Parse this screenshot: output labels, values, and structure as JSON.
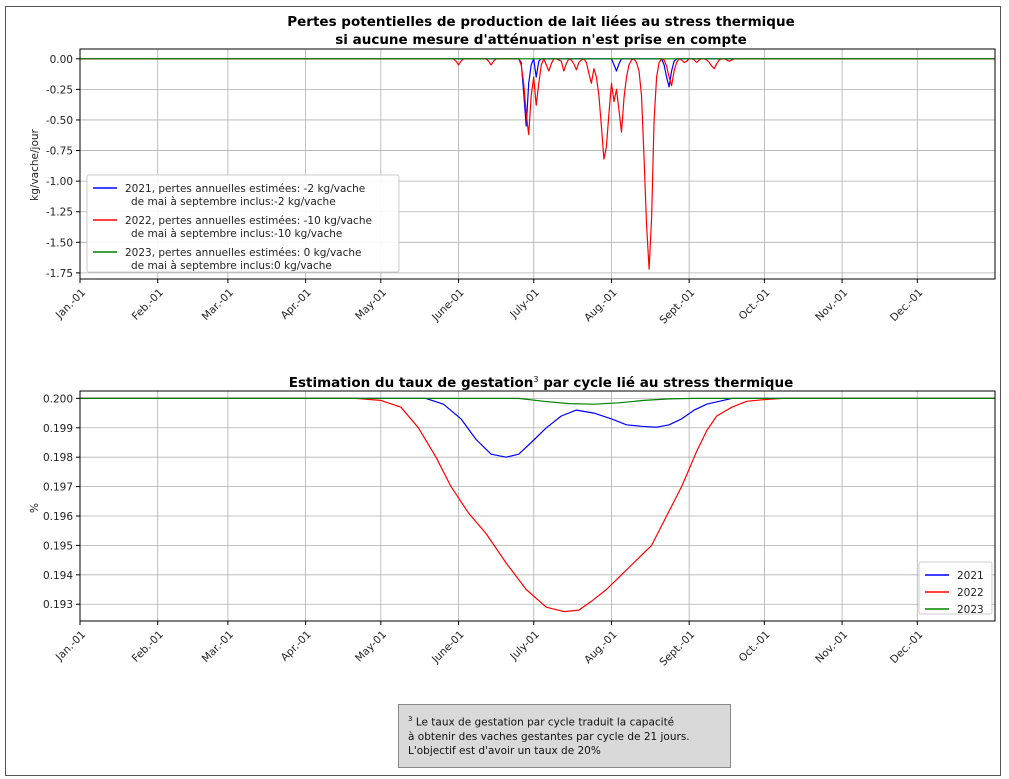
{
  "footnote": {
    "marker": "3",
    "lines": [
      "Le taux de gestation par cycle traduit la capacité",
      "à obtenir des vaches gestantes par cycle de 21 jours.",
      "L'objectif est d'avoir un taux de 20%"
    ]
  },
  "chart_data": [
    {
      "type": "line",
      "title": "Pertes potentielles de production de lait liées au stress thermique",
      "subtitle": "si aucune mesure d'atténuation n'est prise en compte",
      "xlabel": "",
      "ylabel": "kg/vache/jour",
      "xlim": [
        0,
        365
      ],
      "ylim": [
        -1.8,
        0.08
      ],
      "grid": true,
      "legend_position": "lower-left",
      "x_tick_positions": [
        0,
        31,
        59,
        90,
        120,
        151,
        181,
        212,
        243,
        273,
        304,
        334
      ],
      "x_tick_labels": [
        "Jan.-01",
        "Feb.-01",
        "Mar.-01",
        "Apr.-01",
        "May-01",
        "June-01",
        "July-01",
        "Aug.-01",
        "Sept.-01",
        "Oct.-01",
        "Nov.-01",
        "Dec.-01"
      ],
      "y_ticks": [
        0.0,
        -0.25,
        -0.5,
        -0.75,
        -1.0,
        -1.25,
        -1.5,
        -1.75
      ],
      "y_tick_labels": [
        "0.00",
        "-0.25",
        "-0.50",
        "-0.75",
        "-1.00",
        "-1.25",
        "-1.50",
        "-1.75"
      ],
      "series": [
        {
          "name": "2021, pertes annuelles estimées: -2 kg/vache",
          "name_line2": "de mai à septembre inclus:-2 kg/vache",
          "color": "#0000ff",
          "x": [
            0,
            175,
            176,
            177,
            178,
            179,
            180,
            181,
            182,
            183,
            184,
            185,
            212,
            213,
            214,
            215,
            216,
            225,
            232,
            233,
            234,
            235,
            236,
            237,
            238,
            245,
            365
          ],
          "y": [
            0,
            0,
            -0.03,
            -0.28,
            -0.55,
            -0.2,
            -0.05,
            0,
            -0.15,
            -0.02,
            0,
            0,
            0,
            -0.05,
            -0.1,
            -0.04,
            0,
            0,
            0,
            -0.05,
            -0.15,
            -0.23,
            -0.1,
            -0.02,
            0,
            0,
            0
          ]
        },
        {
          "name": "2022, pertes annuelles estimées: -10 kg/vache",
          "name_line2": "de mai à septembre inclus:-10 kg/vache",
          "color": "#ff0000",
          "x": [
            0,
            149,
            150,
            151,
            152,
            153,
            162,
            163,
            164,
            165,
            166,
            175,
            176,
            177,
            178,
            179,
            180,
            181,
            182,
            183,
            184,
            185,
            186,
            187,
            188,
            189,
            190,
            192,
            193,
            194,
            195,
            196,
            197,
            198,
            199,
            200,
            201,
            202,
            203,
            204,
            205,
            206,
            207,
            208,
            209,
            210,
            211,
            212,
            213,
            214,
            215,
            216,
            217,
            218,
            219,
            220,
            221,
            222,
            223,
            224,
            225,
            226,
            227,
            228,
            229,
            230,
            231,
            232,
            233,
            234,
            235,
            236,
            237,
            238,
            239,
            240,
            241,
            242,
            243,
            244,
            245,
            246,
            247,
            248,
            249,
            250,
            251,
            252,
            253,
            254,
            255,
            256,
            257,
            258,
            259,
            260,
            261,
            262,
            263,
            264,
            265,
            266,
            267,
            268,
            269,
            270,
            365
          ],
          "y": [
            0,
            0,
            -0.02,
            -0.05,
            -0.02,
            0,
            0,
            -0.02,
            -0.05,
            -0.02,
            0,
            0,
            -0.05,
            -0.2,
            -0.45,
            -0.62,
            -0.3,
            -0.15,
            -0.38,
            -0.2,
            -0.05,
            0,
            -0.05,
            -0.1,
            -0.04,
            0,
            0,
            -0.02,
            -0.1,
            -0.04,
            0,
            -0.01,
            -0.04,
            -0.09,
            -0.03,
            -0.01,
            0,
            -0.03,
            -0.12,
            -0.2,
            -0.08,
            -0.15,
            -0.3,
            -0.55,
            -0.82,
            -0.72,
            -0.45,
            -0.2,
            -0.35,
            -0.25,
            -0.42,
            -0.6,
            -0.32,
            -0.15,
            -0.05,
            -0.01,
            0,
            -0.03,
            -0.1,
            -0.3,
            -0.8,
            -1.35,
            -1.72,
            -1.3,
            -0.5,
            -0.15,
            -0.03,
            0,
            -0.01,
            -0.06,
            -0.15,
            -0.22,
            -0.1,
            -0.03,
            0,
            -0.01,
            -0.03,
            -0.02,
            0,
            0,
            -0.01,
            -0.03,
            -0.01,
            0,
            0,
            -0.01,
            -0.03,
            -0.06,
            -0.08,
            -0.04,
            -0.01,
            0,
            0,
            -0.01,
            -0.02,
            -0.01,
            0,
            0,
            0,
            0,
            0,
            0,
            0,
            0,
            0,
            0,
            0
          ]
        },
        {
          "name": "2023, pertes annuelles estimées: 0 kg/vache",
          "name_line2": "de mai à septembre inclus:0 kg/vache",
          "color": "#008000",
          "x": [
            0,
            365
          ],
          "y": [
            0,
            0
          ]
        }
      ]
    },
    {
      "type": "line",
      "title": "Estimation du taux de gestation",
      "title_superscript": "3",
      "title_suffix": " par cycle lié au stress thermique",
      "xlabel": "",
      "ylabel": "%",
      "xlim": [
        0,
        365
      ],
      "ylim": [
        0.19243,
        0.20025
      ],
      "grid": true,
      "legend_position": "lower-right",
      "x_tick_positions": [
        0,
        31,
        59,
        90,
        120,
        151,
        181,
        212,
        243,
        273,
        304,
        334
      ],
      "x_tick_labels": [
        "Jan.-01",
        "Feb.-01",
        "Mar.-01",
        "Apr.-01",
        "May-01",
        "June-01",
        "July-01",
        "Aug.-01",
        "Sept.-01",
        "Oct.-01",
        "Nov.-01",
        "Dec.-01"
      ],
      "y_ticks": [
        0.2,
        0.199,
        0.198,
        0.197,
        0.196,
        0.195,
        0.194,
        0.193
      ],
      "y_tick_labels": [
        "0.200",
        "0.199",
        "0.198",
        "0.197",
        "0.196",
        "0.195",
        "0.194",
        "0.193"
      ],
      "series": [
        {
          "name": "2021",
          "color": "#0000ff",
          "x": [
            0,
            130,
            138,
            145,
            152,
            158,
            164,
            170,
            175,
            180,
            186,
            192,
            198,
            205,
            212,
            218,
            224,
            230,
            235,
            240,
            245,
            250,
            255,
            260,
            265,
            270,
            365
          ],
          "y": [
            0.2,
            0.2,
            0.2,
            0.1998,
            0.1993,
            0.1986,
            0.1981,
            0.198,
            0.1981,
            0.1985,
            0.199,
            0.1994,
            0.1996,
            0.1995,
            0.1993,
            0.1991,
            0.19905,
            0.19902,
            0.1991,
            0.1993,
            0.1996,
            0.1998,
            0.1999,
            0.2,
            0.2,
            0.2,
            0.2
          ]
        },
        {
          "name": "2022",
          "color": "#ff0000",
          "x": [
            0,
            110,
            120,
            128,
            135,
            142,
            148,
            155,
            162,
            170,
            178,
            186,
            193,
            199,
            204,
            210,
            216,
            222,
            228,
            234,
            240,
            246,
            250,
            254,
            260,
            266,
            272,
            280,
            290,
            365
          ],
          "y": [
            0.2,
            0.2,
            0.19993,
            0.1997,
            0.199,
            0.198,
            0.197,
            0.1961,
            0.1954,
            0.1944,
            0.1935,
            0.1929,
            0.19275,
            0.1928,
            0.1931,
            0.1935,
            0.194,
            0.1945,
            0.195,
            0.196,
            0.197,
            0.1982,
            0.1989,
            0.1994,
            0.1997,
            0.1999,
            0.19995,
            0.2,
            0.2,
            0.2
          ]
        },
        {
          "name": "2023",
          "color": "#008000",
          "x": [
            0,
            175,
            185,
            195,
            205,
            215,
            225,
            235,
            245,
            365
          ],
          "y": [
            0.2,
            0.2,
            0.1999,
            0.19982,
            0.1998,
            0.19985,
            0.19993,
            0.19998,
            0.2,
            0.2
          ]
        }
      ]
    }
  ]
}
